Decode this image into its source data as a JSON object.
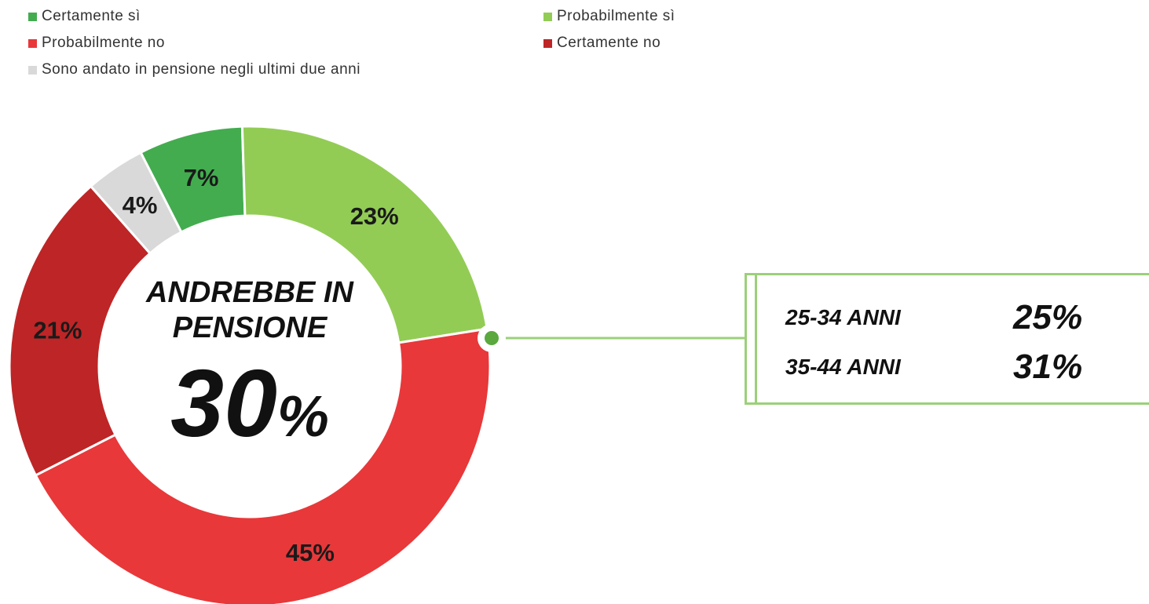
{
  "legend": [
    {
      "label": "Certamente sì",
      "color": "#43ac4f"
    },
    {
      "label": "Probabilmente sì",
      "color": "#92cc55"
    },
    {
      "label": "Probabilmente no",
      "color": "#e8383a"
    },
    {
      "label": "Certamente no",
      "color": "#be2526"
    },
    {
      "label": "Sono andato in pensione negli ultimi due anni",
      "color": "#d9d9d9"
    }
  ],
  "chart_data": {
    "type": "pie",
    "style": "donut",
    "categories": [
      "Certamente sì",
      "Probabilmente sì",
      "Probabilmente no",
      "Certamente no",
      "Sono andato in pensione negli ultimi due anni"
    ],
    "values": [
      7,
      23,
      45,
      21,
      4
    ],
    "labels": [
      "7%",
      "23%",
      "45%",
      "21%",
      "4%"
    ],
    "colors": [
      "#43ac4f",
      "#92cc55",
      "#e8383a",
      "#be2526",
      "#d9d9d9"
    ],
    "center_text": {
      "line1": "ANDREBBE IN",
      "line2": "PENSIONE",
      "value": "30",
      "unit": "%"
    }
  },
  "callout": {
    "rows": [
      {
        "label": "25-34 ANNI",
        "value": "25%"
      },
      {
        "label": "35-44 ANNI",
        "value": "31%"
      }
    ]
  }
}
